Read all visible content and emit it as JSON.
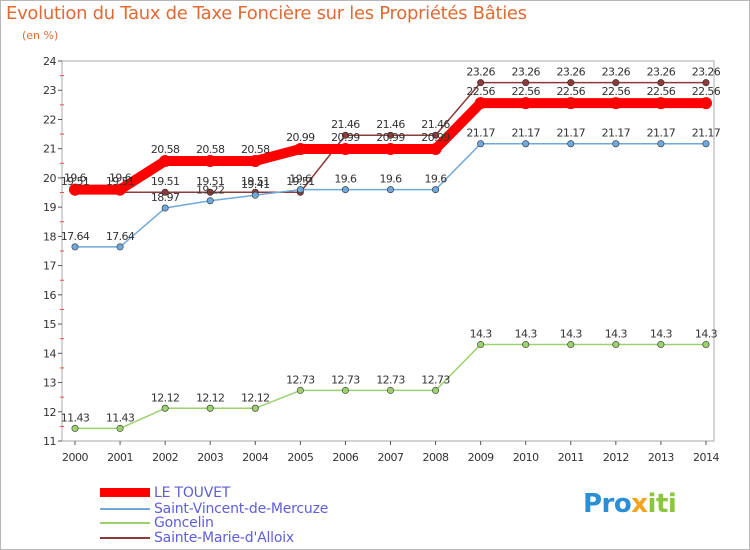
{
  "title": "Evolution du Taux de Taxe Foncière sur les Propriétés Bâties",
  "unit": "(en %)",
  "brand": {
    "part1": "Pro",
    "part2": "x",
    "part3": "iti"
  },
  "chart_data": {
    "type": "line",
    "title": "Evolution du Taux de Taxe Foncière sur les Propriétés Bâties",
    "ylabel": "(en %)",
    "xlabel": "",
    "ylim": [
      11,
      24
    ],
    "yticks": [
      11,
      12,
      13,
      14,
      15,
      16,
      17,
      18,
      19,
      20,
      21,
      22,
      23,
      24
    ],
    "categories": [
      "2000",
      "2001",
      "2002",
      "2003",
      "2004",
      "2005",
      "2006",
      "2007",
      "2008",
      "2009",
      "2010",
      "2011",
      "2012",
      "2013",
      "2014"
    ],
    "legend_position": "bottom-left",
    "series": [
      {
        "name": "LE TOUVET",
        "color": "#ff0000",
        "values": [
          19.6,
          19.6,
          20.58,
          20.58,
          20.58,
          20.99,
          20.99,
          20.99,
          20.99,
          22.56,
          22.56,
          22.56,
          22.56,
          22.56,
          22.56
        ],
        "labels": [
          "19.6",
          "19.6",
          "20.58",
          "20.58",
          "20.58",
          "20.99",
          "20.99",
          "20.99",
          "20.99",
          "22.56",
          "22.56",
          "22.56",
          "22.56",
          "22.56",
          "22.56"
        ]
      },
      {
        "name": "Saint-Vincent-de-Mercuze",
        "color": "#6fa8dc",
        "values": [
          17.64,
          17.64,
          18.97,
          19.22,
          19.41,
          19.6,
          19.6,
          19.6,
          19.6,
          21.17,
          21.17,
          21.17,
          21.17,
          21.17,
          21.17
        ],
        "labels": [
          "17.64",
          "17.64",
          "18.97",
          "19.22",
          "19.41",
          "19.6",
          "19.6",
          "19.6",
          "19.6",
          "21.17",
          "21.17",
          "21.17",
          "21.17",
          "21.17",
          "21.17"
        ]
      },
      {
        "name": "Goncelin",
        "color": "#9bd16f",
        "values": [
          11.43,
          11.43,
          12.12,
          12.12,
          12.12,
          12.73,
          12.73,
          12.73,
          12.73,
          14.3,
          14.3,
          14.3,
          14.3,
          14.3,
          14.3
        ],
        "labels": [
          "11.43",
          "11.43",
          "12.12",
          "12.12",
          "12.12",
          "12.73",
          "12.73",
          "12.73",
          "12.73",
          "14.3",
          "14.3",
          "14.3",
          "14.3",
          "14.3",
          "14.3"
        ]
      },
      {
        "name": "Sainte-Marie-d'Alloix",
        "color": "#8c3a3a",
        "values": [
          19.51,
          19.51,
          19.51,
          19.51,
          19.51,
          19.51,
          21.46,
          21.46,
          21.46,
          23.26,
          23.26,
          23.26,
          23.26,
          23.26,
          23.26
        ],
        "labels": [
          "19.51",
          "19.51",
          "19.51",
          "19.51",
          "19.51",
          "19.51",
          "21.46",
          "21.46",
          "21.46",
          "23.26",
          "23.26",
          "23.26",
          "23.26",
          "23.26",
          "23.26"
        ]
      }
    ]
  }
}
